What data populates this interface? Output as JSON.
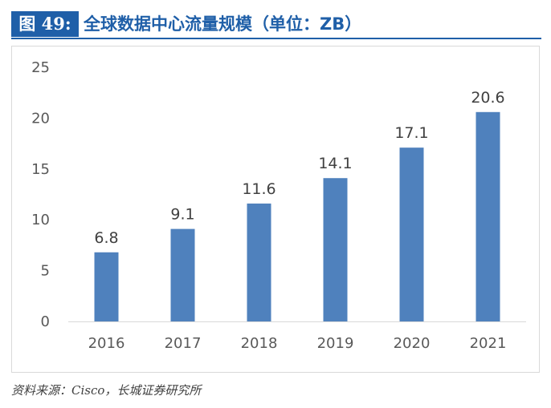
{
  "figure": {
    "label": "图 49:",
    "title": "全球数据中心流量规模（单位：ZB）"
  },
  "source": "资料来源：Cisco，长城证券研究所",
  "colors": {
    "bar": "#4f81bd",
    "label_bg": "#1f5fa8",
    "title_text": "#1f5fa8",
    "axis": "#d9d9d9",
    "tick_text": "#595959",
    "data_label": "#404040"
  },
  "chart_data": {
    "type": "bar",
    "categories": [
      "2016",
      "2017",
      "2018",
      "2019",
      "2020",
      "2021"
    ],
    "values": [
      6.8,
      9.1,
      11.6,
      14.1,
      17.1,
      20.6
    ],
    "data_labels": [
      "6.8",
      "9.1",
      "11.6",
      "14.1",
      "17.1",
      "20.6"
    ],
    "ylim": [
      0,
      25
    ],
    "yticks": [
      "0",
      "5",
      "10",
      "15",
      "20",
      "25"
    ],
    "grid": false,
    "legend": "none"
  }
}
